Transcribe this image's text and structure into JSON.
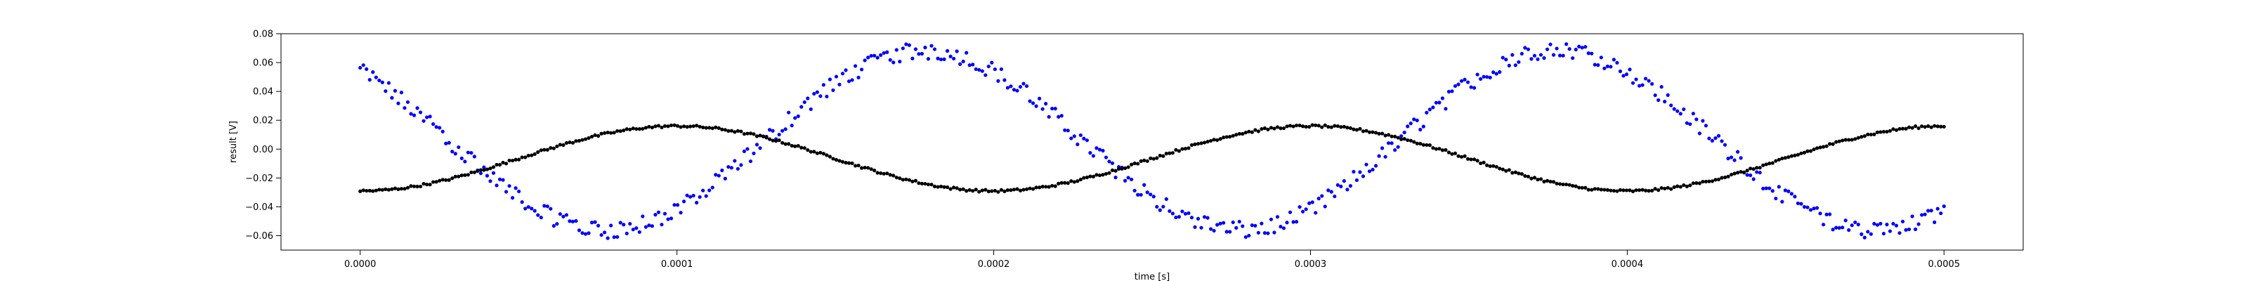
{
  "chart_data": {
    "type": "scatter",
    "title": "",
    "xlabel": "time [s]",
    "ylabel": "result [V]",
    "xlim": [
      -2.5e-05,
      0.000525
    ],
    "ylim": [
      -0.07,
      0.08
    ],
    "xticks": [
      0.0,
      0.0001,
      0.0002,
      0.0003,
      0.0004,
      0.0005
    ],
    "xtick_labels": [
      "0.0000",
      "0.0001",
      "0.0002",
      "0.0003",
      "0.0004",
      "0.0005"
    ],
    "yticks": [
      -0.06,
      -0.04,
      -0.02,
      0.0,
      0.02,
      0.04,
      0.06,
      0.08
    ],
    "ytick_labels": [
      "−0.06",
      "−0.04",
      "−0.02",
      "0.00",
      "0.02",
      "0.04",
      "0.06",
      "0.08"
    ],
    "grid": false,
    "legend": "none",
    "series": [
      {
        "color": "#0000ff",
        "points_per_series": 500,
        "x_range": [
          0.0,
          0.0005
        ],
        "approx_model": "0.006 + 0.062*cos(2*pi*5000*(t - 0.000178)); two interleaved bands, noise ±0.005 V",
        "key_points": [
          {
            "x": 0.0,
            "y": 0.055
          },
          {
            "x": 8e-05,
            "y": -0.058
          },
          {
            "x": 0.000178,
            "y": 0.067
          },
          {
            "x": 0.000278,
            "y": -0.058
          },
          {
            "x": 0.000378,
            "y": 0.069
          },
          {
            "x": 0.00048,
            "y": -0.058
          },
          {
            "x": 0.0005,
            "y": -0.045
          }
        ]
      },
      {
        "color": "#000000",
        "points_per_series": 500,
        "x_range": [
          0.0,
          0.0005
        ],
        "approx_model": "-0.0065 + 0.0225*cos(2*pi*5000*(t - 0.0001)); low noise",
        "key_points": [
          {
            "x": 0.0,
            "y": -0.029
          },
          {
            "x": 0.0001,
            "y": 0.016
          },
          {
            "x": 0.0002,
            "y": -0.029
          },
          {
            "x": 0.0003,
            "y": 0.016
          },
          {
            "x": 0.0004,
            "y": -0.029
          },
          {
            "x": 0.0005,
            "y": 0.017
          }
        ]
      }
    ]
  }
}
